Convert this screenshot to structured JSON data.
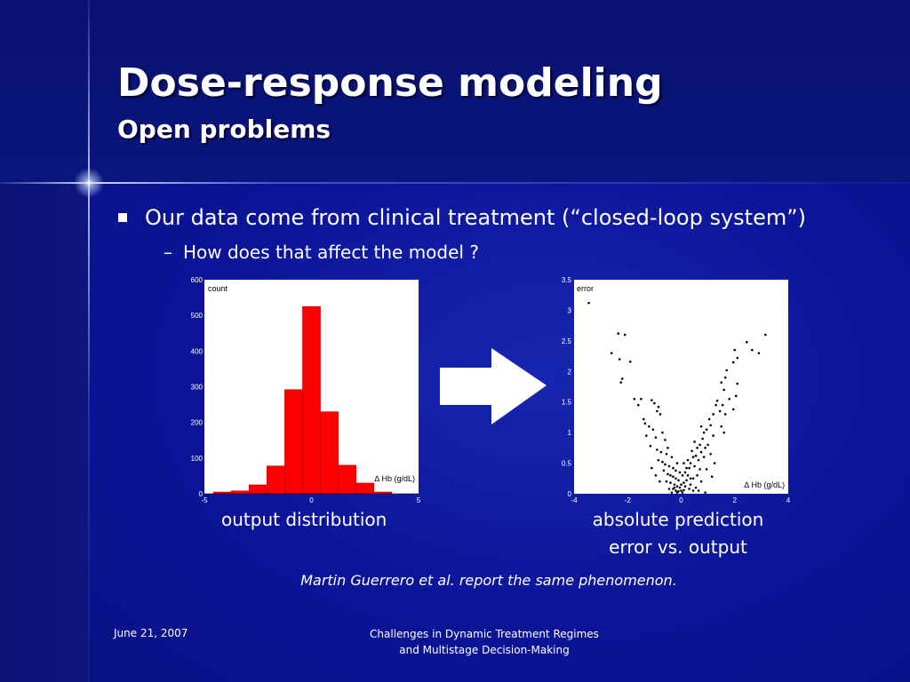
{
  "slide": {
    "title": "Dose-response modeling",
    "subtitle": "Open problems",
    "bullet": "Our data come from clinical treatment (“closed-loop system”)",
    "sub_bullet": "How does that affect the model ?",
    "sub_bullet_marker": "–",
    "caption_left": "output distribution",
    "caption_right_line1": "absolute prediction",
    "caption_right_line2": "error vs. output",
    "note": "Martin Guerrero et al. report the same phenomenon.",
    "footer_date": "June 21, 2007",
    "footer_title_line1": "Challenges in Dynamic Treatment Regimes",
    "footer_title_line2": "and Multistage Decision-Making"
  },
  "colors": {
    "background": "#0c1599",
    "text": "#ffffff",
    "bar_fill": "#ff0000",
    "arrow": "#ffffff"
  },
  "chart_data": [
    {
      "type": "bar",
      "ylabel": "count",
      "xlabel": "∆ Hb (g/dL)",
      "xlim": [
        -5,
        5
      ],
      "ylim": [
        0,
        600
      ],
      "x_ticks": [
        "-5",
        "0",
        "5"
      ],
      "y_ticks": [
        "0",
        "100",
        "200",
        "300",
        "400",
        "500",
        "600"
      ],
      "bin_width": 0.833,
      "bins": [
        {
          "x0": -4.583,
          "x1": -3.75,
          "value": 5
        },
        {
          "x0": -3.75,
          "x1": -2.917,
          "value": 8
        },
        {
          "x0": -2.917,
          "x1": -2.083,
          "value": 25
        },
        {
          "x0": -2.083,
          "x1": -1.25,
          "value": 78
        },
        {
          "x0": -1.25,
          "x1": -0.417,
          "value": 292
        },
        {
          "x0": -0.417,
          "x1": 0.417,
          "value": 525
        },
        {
          "x0": 0.417,
          "x1": 1.25,
          "value": 230
        },
        {
          "x0": 1.25,
          "x1": 2.083,
          "value": 80
        },
        {
          "x0": 2.083,
          "x1": 2.917,
          "value": 30
        },
        {
          "x0": 2.917,
          "x1": 3.75,
          "value": 5
        }
      ]
    },
    {
      "type": "scatter",
      "ylabel": "error",
      "xlabel": "∆ Hb (g/dL)",
      "xlim": [
        -4,
        4
      ],
      "ylim": [
        0,
        3.5
      ],
      "x_ticks": [
        "-4",
        "-2",
        "0",
        "2",
        "4"
      ],
      "y_ticks": [
        "0",
        "0.5",
        "1",
        "1.5",
        "2",
        "2.5",
        "3",
        "3.5"
      ],
      "points": [
        [
          -3.45,
          3.12
        ],
        [
          -2.35,
          2.62
        ],
        [
          -2.1,
          2.6
        ],
        [
          -2.6,
          2.3
        ],
        [
          -2.3,
          2.2
        ],
        [
          -1.9,
          2.16
        ],
        [
          -2.2,
          1.88
        ],
        [
          -2.25,
          1.82
        ],
        [
          -1.75,
          1.55
        ],
        [
          -1.5,
          1.55
        ],
        [
          -1.6,
          1.45
        ],
        [
          -1.1,
          1.53
        ],
        [
          -1.0,
          1.48
        ],
        [
          -0.85,
          1.42
        ],
        [
          -0.9,
          1.35
        ],
        [
          -0.78,
          1.3
        ],
        [
          -1.4,
          1.22
        ],
        [
          -1.35,
          1.15
        ],
        [
          -1.2,
          1.1
        ],
        [
          -1.05,
          1.05
        ],
        [
          -1.3,
          0.95
        ],
        [
          -0.95,
          0.92
        ],
        [
          -0.7,
          1.0
        ],
        [
          -0.6,
          0.88
        ],
        [
          -1.15,
          0.78
        ],
        [
          -0.9,
          0.72
        ],
        [
          -0.75,
          0.68
        ],
        [
          -0.55,
          0.65
        ],
        [
          -0.5,
          0.75
        ],
        [
          -0.35,
          0.6
        ],
        [
          -0.85,
          0.55
        ],
        [
          -0.7,
          0.52
        ],
        [
          -0.6,
          0.48
        ],
        [
          -0.45,
          0.45
        ],
        [
          -0.3,
          0.42
        ],
        [
          -0.2,
          0.38
        ],
        [
          -0.65,
          0.38
        ],
        [
          -0.5,
          0.32
        ],
        [
          -0.4,
          0.3
        ],
        [
          -0.3,
          0.28
        ],
        [
          -0.2,
          0.25
        ],
        [
          -0.1,
          0.22
        ],
        [
          -0.55,
          0.2
        ],
        [
          -0.4,
          0.18
        ],
        [
          -0.25,
          0.15
        ],
        [
          -0.15,
          0.12
        ],
        [
          -0.05,
          0.1
        ],
        [
          -0.3,
          0.08
        ],
        [
          -0.2,
          0.05
        ],
        [
          -0.1,
          0.04
        ],
        [
          0.0,
          0.05
        ],
        [
          0.1,
          0.06
        ],
        [
          -0.35,
          0.02
        ],
        [
          -0.15,
          0.02
        ],
        [
          0.05,
          0.02
        ],
        [
          -0.25,
          0.1
        ],
        [
          0.0,
          0.15
        ],
        [
          0.1,
          0.18
        ],
        [
          0.15,
          0.12
        ],
        [
          0.2,
          0.22
        ],
        [
          0.25,
          0.3
        ],
        [
          0.05,
          0.3
        ],
        [
          0.15,
          0.35
        ],
        [
          0.3,
          0.42
        ],
        [
          0.35,
          0.5
        ],
        [
          0.1,
          0.5
        ],
        [
          0.25,
          0.55
        ],
        [
          0.45,
          0.6
        ],
        [
          0.5,
          0.45
        ],
        [
          0.55,
          0.62
        ],
        [
          0.4,
          0.7
        ],
        [
          0.6,
          0.75
        ],
        [
          0.7,
          0.8
        ],
        [
          0.5,
          0.85
        ],
        [
          0.8,
          0.9
        ],
        [
          0.75,
          0.68
        ],
        [
          0.65,
          0.55
        ],
        [
          0.85,
          0.6
        ],
        [
          0.9,
          0.75
        ],
        [
          0.45,
          0.25
        ],
        [
          0.6,
          0.3
        ],
        [
          0.7,
          0.4
        ],
        [
          0.35,
          0.15
        ],
        [
          0.55,
          0.1
        ],
        [
          0.75,
          0.2
        ],
        [
          0.65,
          0.05
        ],
        [
          0.9,
          0.02
        ],
        [
          0.3,
          0.08
        ],
        [
          0.85,
          1.0
        ],
        [
          0.95,
          1.05
        ],
        [
          0.75,
          1.1
        ],
        [
          1.1,
          1.12
        ],
        [
          1.05,
          1.22
        ],
        [
          1.2,
          1.3
        ],
        [
          1.3,
          1.45
        ],
        [
          1.35,
          1.52
        ],
        [
          1.45,
          1.35
        ],
        [
          1.6,
          1.7
        ],
        [
          1.55,
          1.45
        ],
        [
          1.5,
          1.82
        ],
        [
          1.65,
          1.9
        ],
        [
          1.7,
          2.02
        ],
        [
          1.8,
          1.55
        ],
        [
          1.65,
          1.3
        ],
        [
          1.5,
          1.1
        ],
        [
          1.6,
          1.0
        ],
        [
          1.95,
          1.38
        ],
        [
          2.05,
          1.6
        ],
        [
          2.1,
          1.8
        ],
        [
          1.95,
          2.15
        ],
        [
          2.1,
          2.22
        ],
        [
          2.0,
          2.35
        ],
        [
          2.45,
          2.48
        ],
        [
          2.65,
          2.35
        ],
        [
          2.9,
          2.3
        ],
        [
          3.15,
          2.6
        ],
        [
          1.2,
          0.95
        ],
        [
          1.0,
          0.8
        ],
        [
          1.1,
          0.65
        ],
        [
          1.25,
          0.5
        ],
        [
          0.95,
          0.4
        ],
        [
          1.15,
          0.28
        ],
        [
          -0.8,
          0.2
        ],
        [
          -0.95,
          0.3
        ],
        [
          -1.1,
          0.42
        ],
        [
          -0.05,
          0.35
        ],
        [
          0.2,
          0.42
        ],
        [
          -0.15,
          0.5
        ],
        [
          0.35,
          0.25
        ],
        [
          0.45,
          0.05
        ],
        [
          -0.45,
          0.08
        ]
      ]
    }
  ]
}
